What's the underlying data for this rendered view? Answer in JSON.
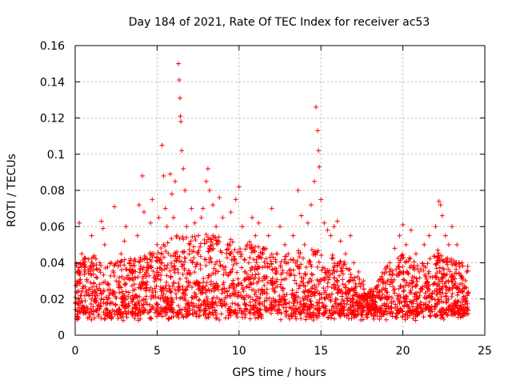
{
  "chart_data": {
    "type": "scatter",
    "title": "Day 184 of 2021, Rate Of TEC Index for receiver ac53",
    "xlabel": "GPS time / hours",
    "ylabel": "ROTI / TECUs",
    "xlim": [
      0,
      25
    ],
    "ylim": [
      0,
      0.16
    ],
    "xticks": [
      "0",
      "5",
      "10",
      "15",
      "20",
      "25"
    ],
    "yticks": [
      "0",
      "0.02",
      "0.04",
      "0.06",
      "0.08",
      "0.1",
      "0.12",
      "0.14",
      "0.16"
    ],
    "grid": true,
    "marker": "plus",
    "color": "#ff0000",
    "series": [
      {
        "name": "ROTI",
        "points": [
          [
            0.1,
            0.018
          ],
          [
            0.2,
            0.03
          ],
          [
            0.25,
            0.062
          ],
          [
            0.4,
            0.045
          ],
          [
            0.5,
            0.012
          ],
          [
            0.6,
            0.035
          ],
          [
            0.8,
            0.042
          ],
          [
            1.0,
            0.055
          ],
          [
            1.2,
            0.02
          ],
          [
            1.5,
            0.04
          ],
          [
            1.6,
            0.063
          ],
          [
            1.7,
            0.059
          ],
          [
            1.8,
            0.05
          ],
          [
            2.0,
            0.025
          ],
          [
            2.2,
            0.04
          ],
          [
            2.4,
            0.071
          ],
          [
            2.5,
            0.03
          ],
          [
            2.8,
            0.045
          ],
          [
            3.0,
            0.052
          ],
          [
            3.1,
            0.06
          ],
          [
            3.3,
            0.04
          ],
          [
            3.5,
            0.036
          ],
          [
            3.8,
            0.055
          ],
          [
            3.9,
            0.072
          ],
          [
            4.1,
            0.088
          ],
          [
            4.2,
            0.068
          ],
          [
            4.4,
            0.04
          ],
          [
            4.6,
            0.062
          ],
          [
            4.7,
            0.075
          ],
          [
            4.8,
            0.045
          ],
          [
            5.0,
            0.05
          ],
          [
            5.1,
            0.065
          ],
          [
            5.3,
            0.105
          ],
          [
            5.4,
            0.088
          ],
          [
            5.5,
            0.07
          ],
          [
            5.6,
            0.06
          ],
          [
            5.8,
            0.089
          ],
          [
            5.9,
            0.078
          ],
          [
            6.0,
            0.065
          ],
          [
            6.1,
            0.085
          ],
          [
            6.2,
            0.055
          ],
          [
            6.3,
            0.15
          ],
          [
            6.35,
            0.141
          ],
          [
            6.4,
            0.131
          ],
          [
            6.42,
            0.121
          ],
          [
            6.45,
            0.118
          ],
          [
            6.5,
            0.102
          ],
          [
            6.6,
            0.092
          ],
          [
            6.7,
            0.08
          ],
          [
            6.8,
            0.06
          ],
          [
            7.0,
            0.05
          ],
          [
            7.1,
            0.07
          ],
          [
            7.3,
            0.062
          ],
          [
            7.5,
            0.045
          ],
          [
            7.7,
            0.065
          ],
          [
            7.8,
            0.07
          ],
          [
            8.0,
            0.085
          ],
          [
            8.1,
            0.092
          ],
          [
            8.2,
            0.08
          ],
          [
            8.4,
            0.072
          ],
          [
            8.6,
            0.06
          ],
          [
            8.8,
            0.076
          ],
          [
            9.0,
            0.065
          ],
          [
            9.3,
            0.05
          ],
          [
            9.5,
            0.068
          ],
          [
            9.8,
            0.075
          ],
          [
            10.0,
            0.082
          ],
          [
            10.2,
            0.06
          ],
          [
            10.5,
            0.05
          ],
          [
            10.8,
            0.065
          ],
          [
            11.0,
            0.055
          ],
          [
            11.2,
            0.062
          ],
          [
            11.5,
            0.048
          ],
          [
            11.8,
            0.055
          ],
          [
            12.0,
            0.07
          ],
          [
            12.3,
            0.045
          ],
          [
            12.5,
            0.06
          ],
          [
            12.8,
            0.05
          ],
          [
            13.0,
            0.045
          ],
          [
            13.3,
            0.055
          ],
          [
            13.6,
            0.08
          ],
          [
            13.8,
            0.066
          ],
          [
            14.0,
            0.05
          ],
          [
            14.2,
            0.062
          ],
          [
            14.4,
            0.072
          ],
          [
            14.6,
            0.085
          ],
          [
            14.7,
            0.126
          ],
          [
            14.8,
            0.113
          ],
          [
            14.85,
            0.102
          ],
          [
            14.9,
            0.093
          ],
          [
            15.0,
            0.075
          ],
          [
            15.2,
            0.062
          ],
          [
            15.4,
            0.058
          ],
          [
            15.6,
            0.055
          ],
          [
            15.8,
            0.06
          ],
          [
            16.0,
            0.063
          ],
          [
            16.2,
            0.052
          ],
          [
            16.5,
            0.045
          ],
          [
            16.8,
            0.055
          ],
          [
            17.0,
            0.04
          ],
          [
            17.3,
            0.035
          ],
          [
            17.6,
            0.03
          ],
          [
            18.0,
            0.025
          ],
          [
            18.4,
            0.022
          ],
          [
            18.8,
            0.03
          ],
          [
            19.2,
            0.04
          ],
          [
            19.5,
            0.048
          ],
          [
            19.8,
            0.055
          ],
          [
            20.0,
            0.061
          ],
          [
            20.2,
            0.05
          ],
          [
            20.5,
            0.058
          ],
          [
            20.8,
            0.045
          ],
          [
            21.0,
            0.035
          ],
          [
            21.3,
            0.05
          ],
          [
            21.6,
            0.055
          ],
          [
            22.0,
            0.06
          ],
          [
            22.2,
            0.074
          ],
          [
            22.3,
            0.072
          ],
          [
            22.4,
            0.066
          ],
          [
            22.6,
            0.055
          ],
          [
            22.8,
            0.05
          ],
          [
            23.0,
            0.06
          ],
          [
            23.3,
            0.05
          ],
          [
            23.6,
            0.04
          ],
          [
            23.9,
            0.035
          ]
        ]
      }
    ]
  }
}
